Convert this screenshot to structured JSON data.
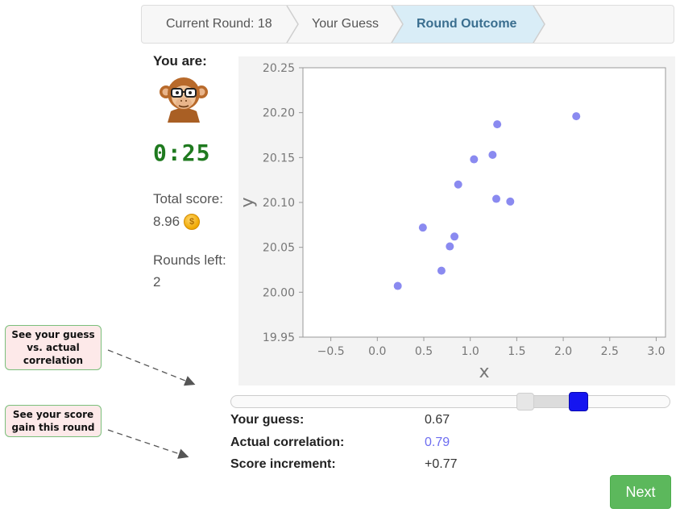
{
  "breadcrumb": {
    "steps": [
      {
        "label": "Current Round: 18",
        "state": "done"
      },
      {
        "label": "Your Guess",
        "state": "done"
      },
      {
        "label": "Round Outcome",
        "state": "active"
      }
    ],
    "colors": {
      "inactive": "#f7f7f7",
      "active": "#d9edf7",
      "active_text": "#3a6e8f"
    }
  },
  "player": {
    "you_are_label": "You are:",
    "avatar_icon": "monkey-with-glasses-icon",
    "timer": "0:25",
    "total_score_label": "Total score:",
    "total_score_value": "8.96",
    "coin_icon": "coin-icon",
    "coin_symbol": "$",
    "rounds_left_label": "Rounds left:",
    "rounds_left_value": "2"
  },
  "chart_data": {
    "type": "scatter",
    "title": "",
    "xlabel": "x",
    "ylabel": "y",
    "xlim": [
      -0.8,
      3.1
    ],
    "ylim": [
      19.95,
      20.25
    ],
    "xticks": [
      -0.5,
      0.0,
      0.5,
      1.0,
      1.5,
      2.0,
      2.5,
      3.0
    ],
    "xtick_labels": [
      "−0.5",
      "0.0",
      "0.5",
      "1.0",
      "1.5",
      "2.0",
      "2.5",
      "3.0"
    ],
    "yticks": [
      19.95,
      20.0,
      20.05,
      20.1,
      20.15,
      20.2,
      20.25
    ],
    "ytick_labels": [
      "19.95",
      "20.00",
      "20.05",
      "20.10",
      "20.15",
      "20.20",
      "20.25"
    ],
    "grid": false,
    "point_color": "#8a8af0",
    "points": [
      {
        "x": 0.22,
        "y": 20.007
      },
      {
        "x": 0.49,
        "y": 20.072
      },
      {
        "x": 0.69,
        "y": 20.024
      },
      {
        "x": 0.78,
        "y": 20.051
      },
      {
        "x": 0.83,
        "y": 20.062
      },
      {
        "x": 0.87,
        "y": 20.12
      },
      {
        "x": 1.04,
        "y": 20.148
      },
      {
        "x": 1.24,
        "y": 20.153
      },
      {
        "x": 1.28,
        "y": 20.104
      },
      {
        "x": 1.29,
        "y": 20.187
      },
      {
        "x": 1.43,
        "y": 20.101
      },
      {
        "x": 2.14,
        "y": 20.196
      }
    ]
  },
  "slider": {
    "guess_value": 0.67,
    "actual_value": 0.79,
    "guess_color": "#1515f0",
    "actual_color": "#e6e6e6"
  },
  "results": {
    "guess_label": "Your guess:",
    "guess_value": "0.67",
    "actual_label": "Actual correlation:",
    "actual_value": "0.79",
    "increment_label": "Score increment:",
    "increment_value": "+0.77"
  },
  "next_button": {
    "label": "Next",
    "color": "#5cb85c"
  },
  "callouts": {
    "guess_vs_actual": "See your guess vs. actual correlation",
    "score_gain": "See your score gain this round"
  }
}
